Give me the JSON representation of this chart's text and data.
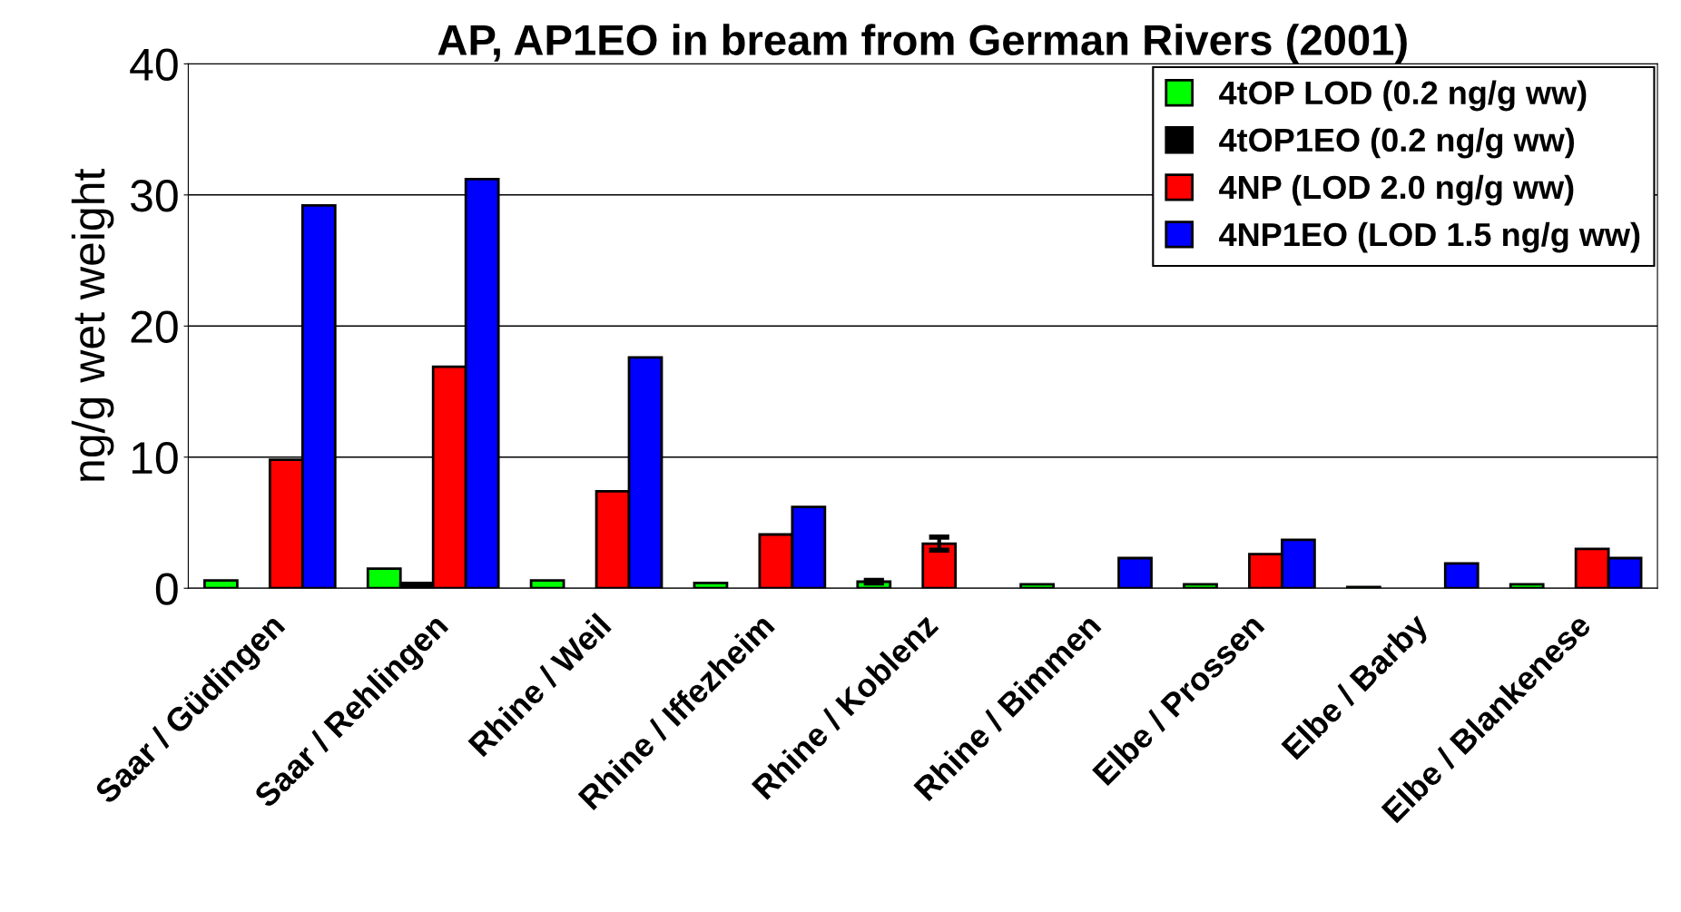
{
  "chart_data": {
    "type": "bar",
    "title": "AP, AP1EO in bream from German Rivers (2001)",
    "ylabel": "ng/g wet weight",
    "categories": [
      "Saar / Güdingen",
      "Saar / Rehlingen",
      "Rhine / Weil",
      "Rhine / Iffezheim",
      "Rhine / Koblenz",
      "Rhine / Bimmen",
      "Elbe / Prossen",
      "Elbe / Barby",
      "Elbe / Blankenese"
    ],
    "series": [
      {
        "name": "4tOP LOD (0.2 ng/g ww)",
        "color": "#00ff00",
        "values": [
          0.6,
          1.5,
          0.6,
          0.4,
          0.5,
          0.3,
          0.3,
          0.1,
          0.3
        ],
        "errors": [
          null,
          null,
          null,
          null,
          0.1,
          null,
          null,
          null,
          null
        ]
      },
      {
        "name": "4tOP1EO (0.2 ng/g ww)",
        "color": "#000000",
        "values": [
          null,
          0.4,
          null,
          null,
          null,
          null,
          null,
          null,
          null
        ]
      },
      {
        "name": "4NP (LOD 2.0 ng/g ww)",
        "color": "#ff0000",
        "values": [
          9.8,
          16.9,
          7.4,
          4.1,
          3.4,
          null,
          2.6,
          null,
          3.0
        ],
        "errors": [
          null,
          null,
          null,
          null,
          0.5,
          null,
          null,
          null,
          null
        ]
      },
      {
        "name": "4NP1EO (LOD 1.5 ng/g ww)",
        "color": "#0000ff",
        "values": [
          29.2,
          31.2,
          17.6,
          6.2,
          null,
          2.3,
          3.7,
          1.9,
          2.3
        ]
      }
    ],
    "ylim": [
      0,
      40
    ],
    "yticks": [
      0,
      10,
      20,
      30,
      40
    ],
    "grid": "y",
    "legend": "top right"
  }
}
